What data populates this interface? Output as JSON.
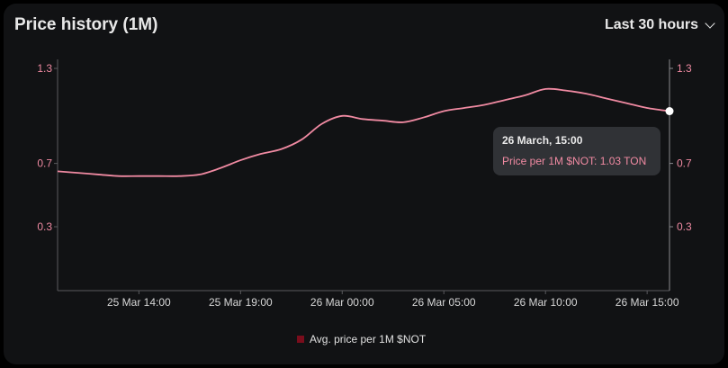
{
  "header": {
    "title": "Price history (1M)",
    "range_label": "Last 30 hours"
  },
  "colors": {
    "background": "#111214",
    "line": "#f08aa2",
    "axis_tick": "#f08aa2",
    "legend_swatch": "#7a0d1c"
  },
  "tooltip": {
    "title": "26 March, 15:00",
    "value": "Price per 1M $NOT: 1.03 TON"
  },
  "legend": {
    "label": "Avg. price per 1M $NOT"
  },
  "chart_data": {
    "type": "line",
    "title": "Price history (1M)",
    "xlabel": "",
    "ylabel": "",
    "x_ticks": [
      "25 Mar 14:00",
      "25 Mar 19:00",
      "26 Mar 00:00",
      "26 Mar 05:00",
      "26 Mar 10:00",
      "26 Mar 15:00"
    ],
    "y_ticks": [
      1.3,
      0.7,
      0.3
    ],
    "y_ticks_right": [
      1.3,
      0.7,
      0.3
    ],
    "xlim_hours_from_start": [
      0,
      30.1
    ],
    "ylim": [
      0.0,
      1.35
    ],
    "series": [
      {
        "name": "Avg. price per 1M $NOT",
        "x_hours": [
          0,
          1,
          2,
          3,
          4,
          5,
          6,
          7,
          8,
          9,
          10,
          11,
          12,
          13,
          14,
          15,
          16,
          17,
          18,
          19,
          20,
          21,
          22,
          23,
          24,
          25,
          26,
          27,
          28,
          29,
          30.1
        ],
        "values": [
          0.65,
          0.64,
          0.63,
          0.62,
          0.62,
          0.62,
          0.62,
          0.63,
          0.67,
          0.72,
          0.76,
          0.79,
          0.85,
          0.95,
          1.0,
          0.98,
          0.97,
          0.96,
          0.99,
          1.03,
          1.05,
          1.07,
          1.1,
          1.13,
          1.17,
          1.16,
          1.14,
          1.11,
          1.08,
          1.05,
          1.03
        ]
      }
    ],
    "grid": false,
    "legend_position": "bottom-center"
  }
}
